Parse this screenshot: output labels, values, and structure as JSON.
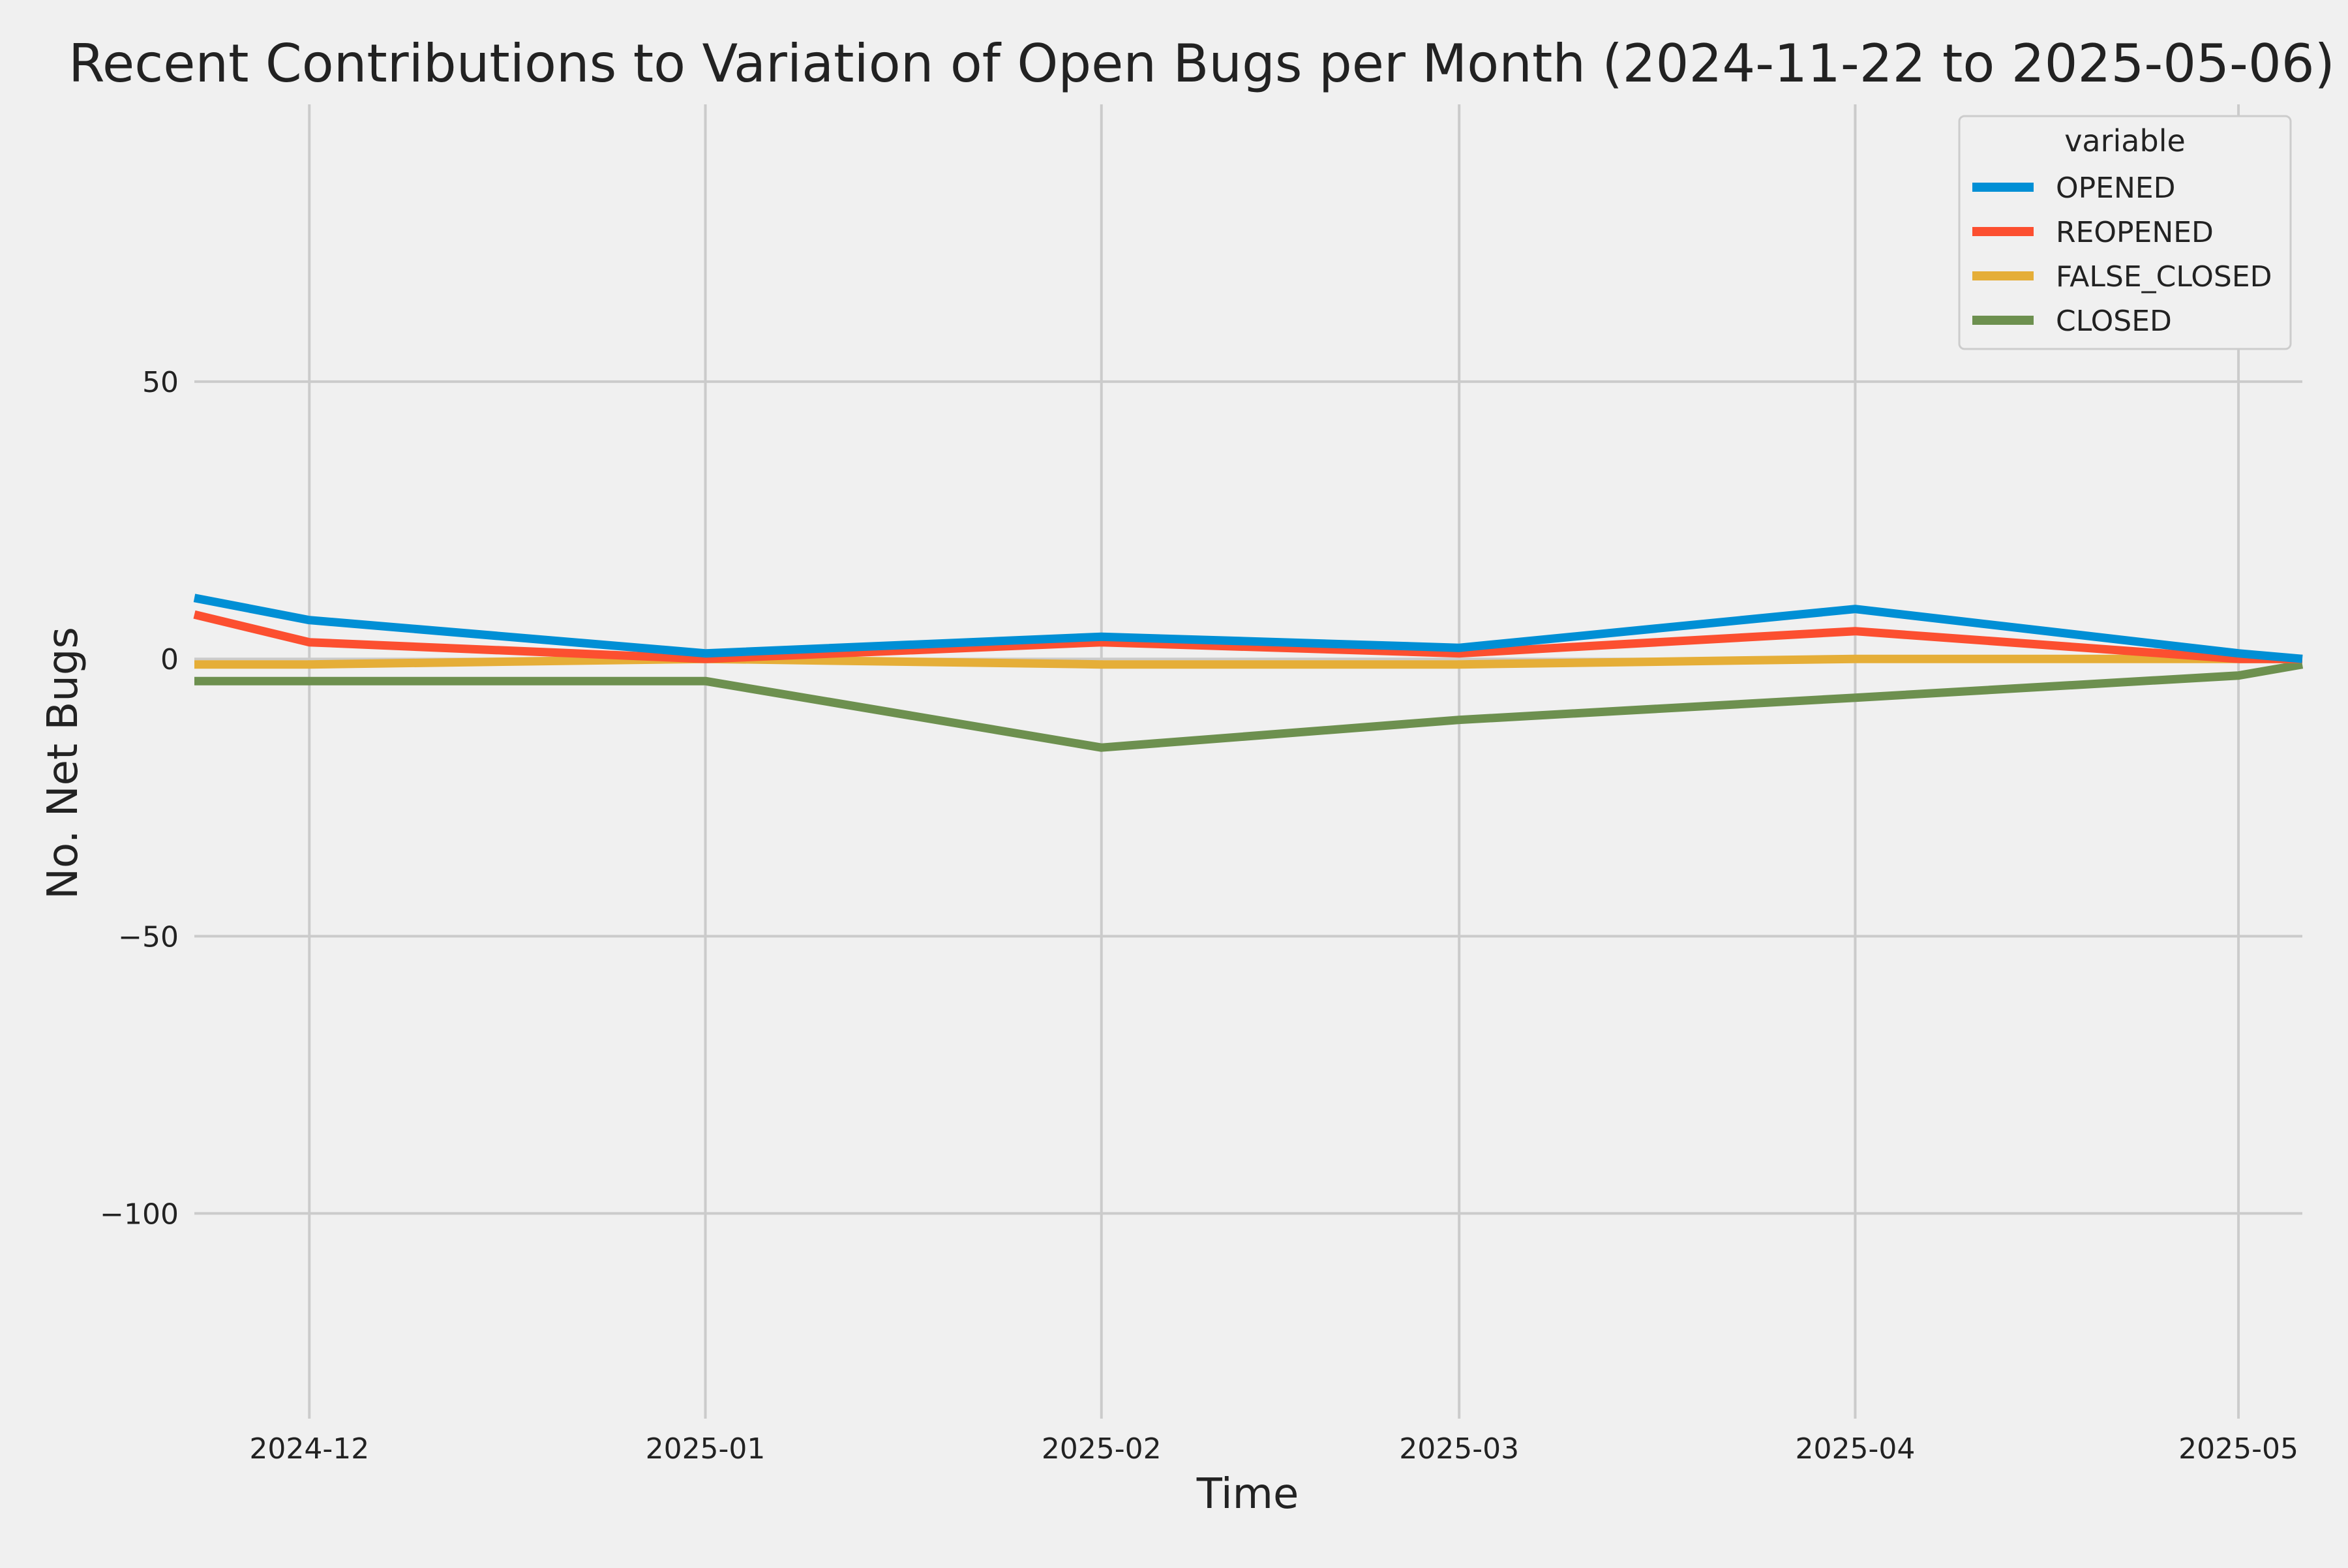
{
  "chart_data": {
    "type": "line",
    "title": "Recent Contributions to Variation of Open Bugs per Month (2024-11-22 to 2025-05-06)",
    "xlabel": "Time",
    "ylabel": "No. Net Bugs",
    "x": [
      "2024-11-22",
      "2024-12-01",
      "2025-01-01",
      "2025-02-01",
      "2025-03-01",
      "2025-04-01",
      "2025-05-01",
      "2025-05-06"
    ],
    "xlim": [
      "2024-11-22",
      "2025-05-06"
    ],
    "ylim": [
      -137,
      100
    ],
    "x_ticks": [
      "2024-12",
      "2025-01",
      "2025-02",
      "2025-03",
      "2025-04",
      "2025-05"
    ],
    "y_ticks": [
      50,
      0,
      -50,
      -100
    ],
    "y_tick_labels": [
      "50",
      "0",
      "−50",
      "−100"
    ],
    "grid": true,
    "legend": {
      "title": "variable",
      "position": "top-right"
    },
    "series": [
      {
        "name": "OPENED",
        "color": "#008fd5",
        "values": [
          11,
          7,
          1,
          4,
          2,
          9,
          1,
          0
        ]
      },
      {
        "name": "REOPENED",
        "color": "#fc4f30",
        "values": [
          8,
          3,
          0,
          3,
          1,
          5,
          0,
          0
        ]
      },
      {
        "name": "FALSE_CLOSED",
        "color": "#e5ae38",
        "values": [
          -1,
          -1,
          0,
          -1,
          -1,
          0,
          0,
          0
        ]
      },
      {
        "name": "CLOSED",
        "color": "#6d904f",
        "values": [
          -4,
          -4,
          -4,
          -16,
          -11,
          -7,
          -3,
          -1
        ]
      }
    ]
  }
}
